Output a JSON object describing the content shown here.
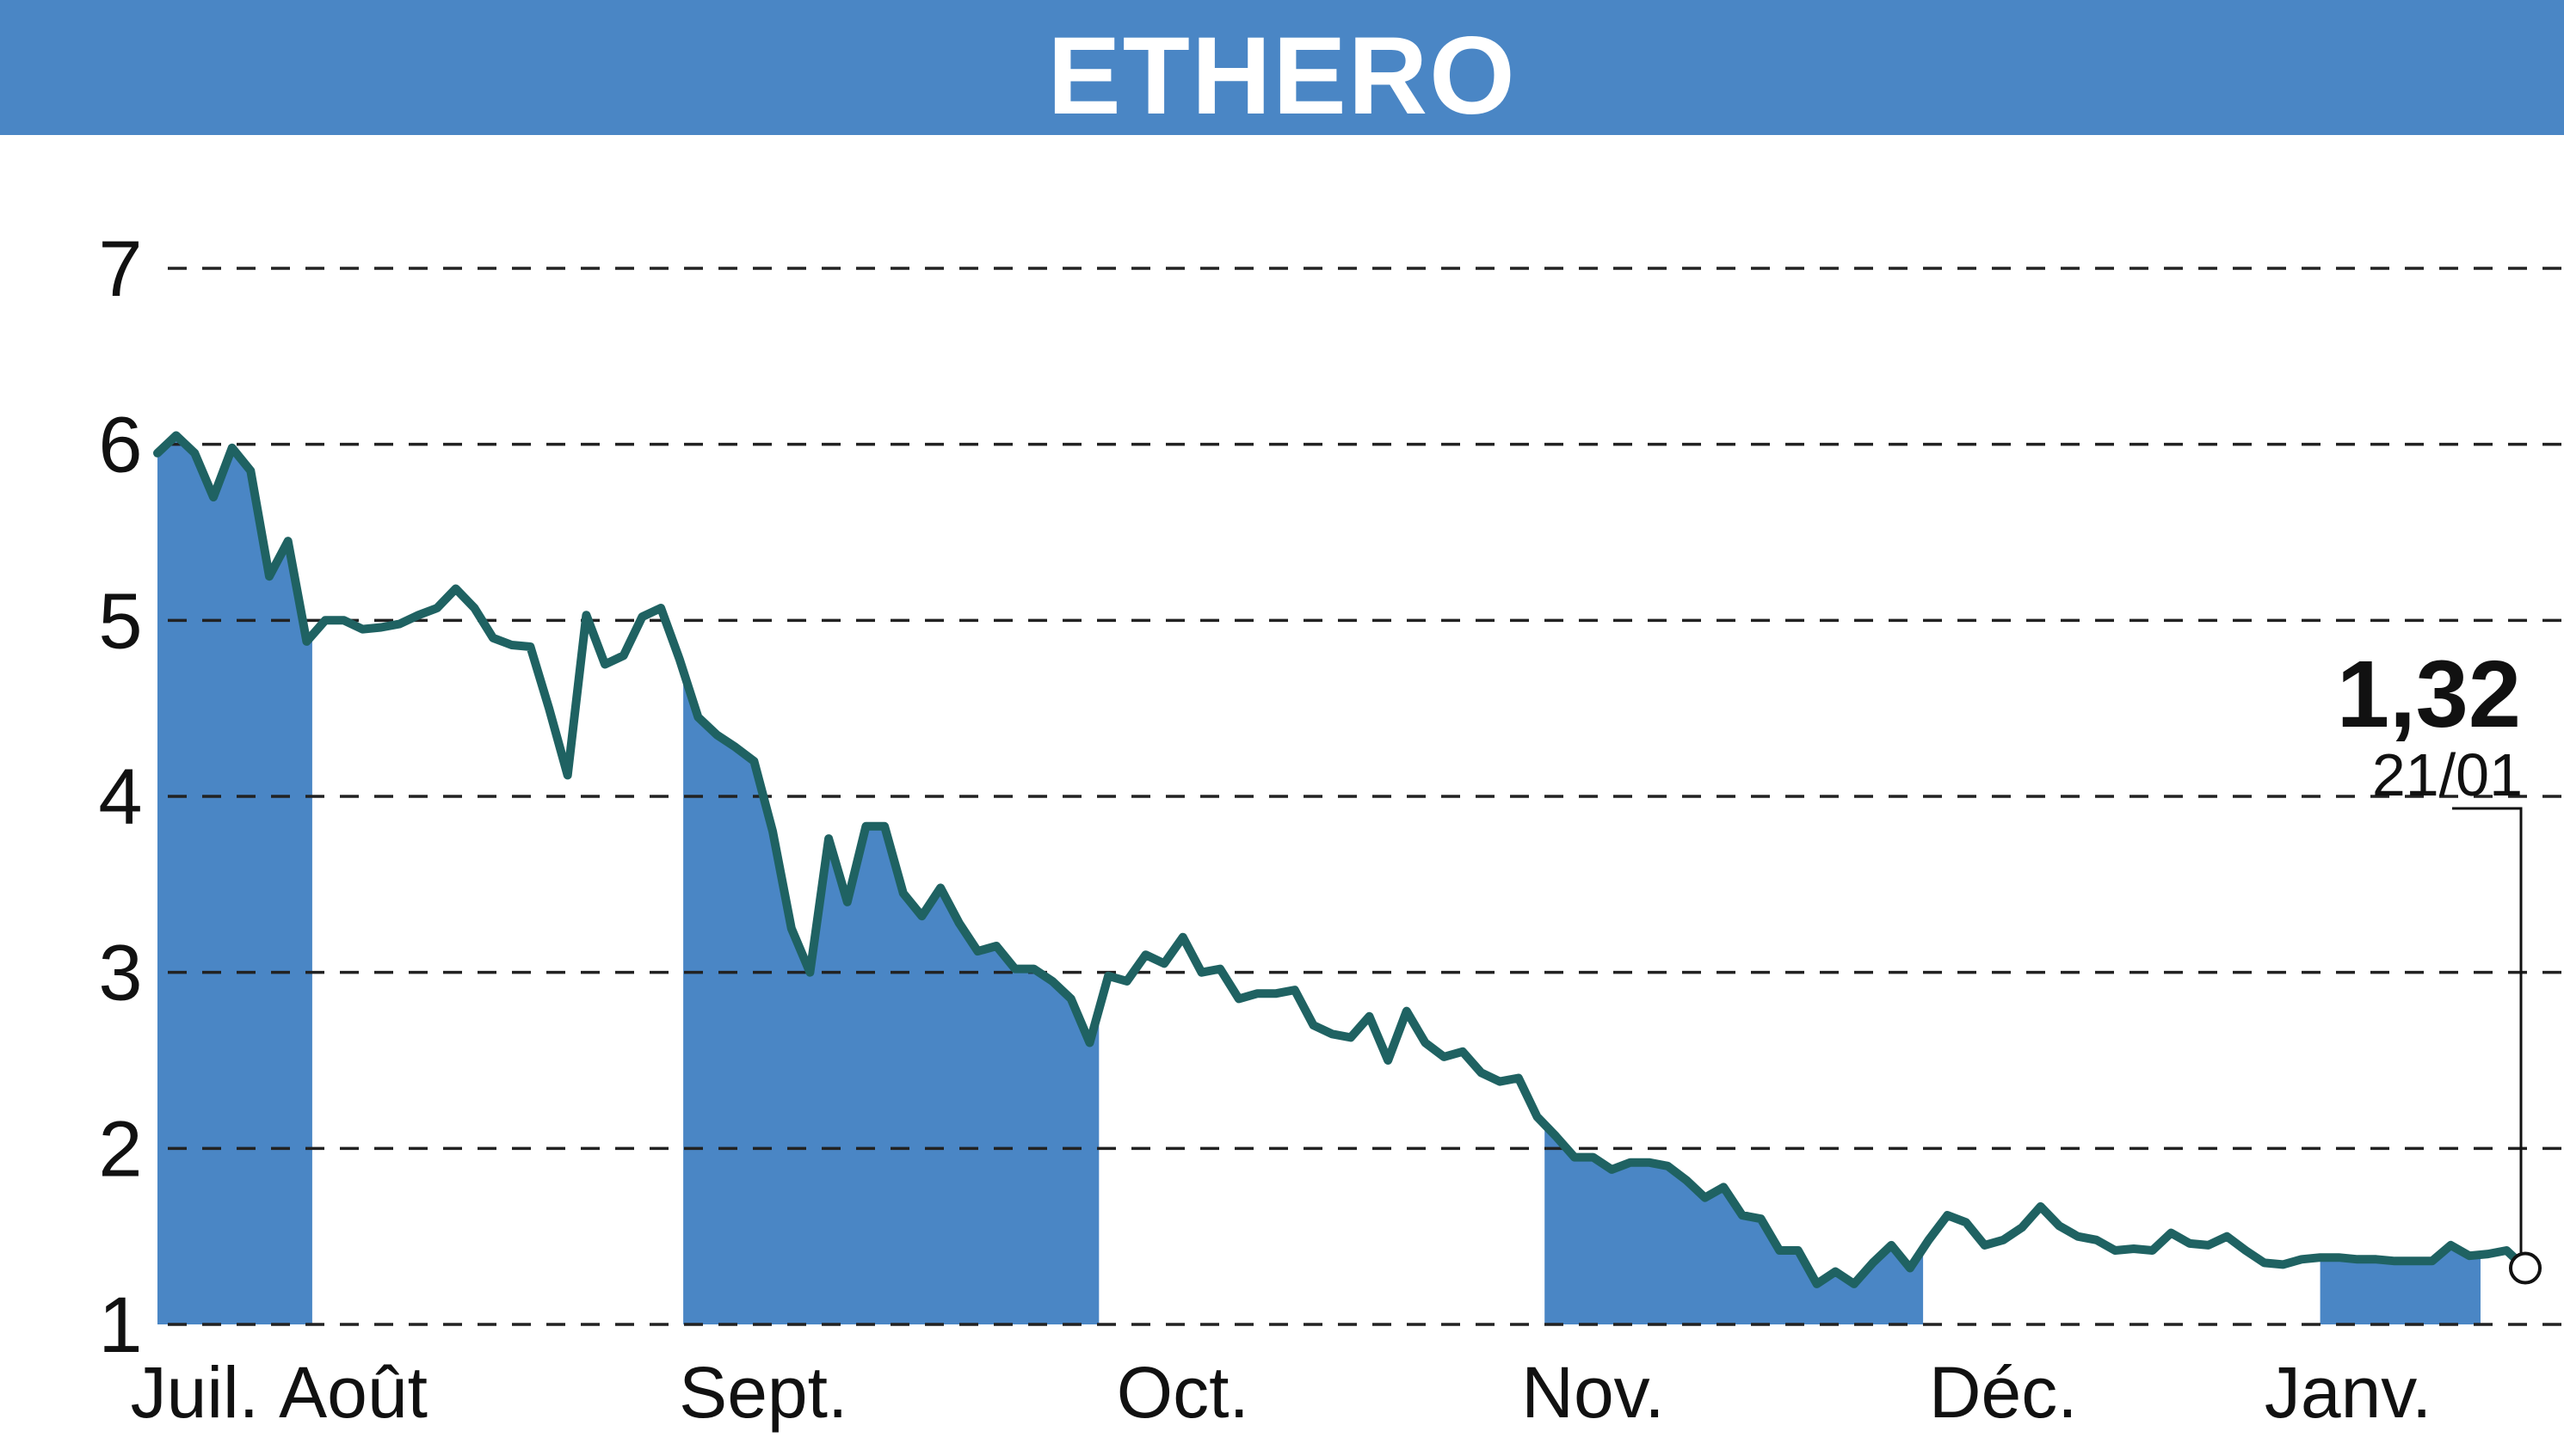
{
  "header": {
    "title": "ETHERO"
  },
  "colors": {
    "accent": "#4a86c5",
    "line": "#1f6262",
    "grid": "#222222",
    "background": "#ffffff"
  },
  "chart_data": {
    "type": "area",
    "title": "ETHERO",
    "xlabel": "",
    "ylabel": "",
    "ylim": [
      1,
      7
    ],
    "yticks": [
      "1",
      "2",
      "3",
      "4",
      "5",
      "6",
      "7"
    ],
    "grid": true,
    "x_ticks": [
      {
        "label": "Juil.",
        "index": 2.0
      },
      {
        "label": "Août",
        "index": 10.5
      },
      {
        "label": "Sept.",
        "index": 32.5
      },
      {
        "label": "Oct.",
        "index": 55.0
      },
      {
        "label": "Nov.",
        "index": 77.0
      },
      {
        "label": "Déc.",
        "index": 99.0
      },
      {
        "label": "Janv.",
        "index": 117.5
      }
    ],
    "shaded_ranges": [
      [
        0,
        8.3
      ],
      [
        28.2,
        50.5
      ],
      [
        74.4,
        94.7
      ],
      [
        116.0,
        124.6
      ]
    ],
    "series": [
      {
        "values": [
          5.95,
          6.05,
          5.95,
          5.7,
          5.98,
          5.85,
          5.25,
          5.45,
          4.88,
          5.0,
          5.0,
          4.95,
          4.96,
          4.98,
          5.03,
          5.07,
          5.18,
          5.07,
          4.9,
          4.86,
          4.85,
          4.5,
          4.12,
          5.03,
          4.75,
          4.8,
          5.02,
          5.07,
          4.78,
          4.45,
          4.35,
          4.28,
          4.2,
          3.8,
          3.25,
          3.0,
          3.76,
          3.4,
          3.83,
          3.83,
          3.45,
          3.32,
          3.48,
          3.28,
          3.12,
          3.15,
          3.02,
          3.02,
          2.95,
          2.85,
          2.6,
          2.98,
          2.95,
          3.1,
          3.05,
          3.2,
          3.0,
          3.02,
          2.85,
          2.88,
          2.88,
          2.9,
          2.7,
          2.65,
          2.63,
          2.75,
          2.5,
          2.78,
          2.6,
          2.52,
          2.55,
          2.43,
          2.38,
          2.4,
          2.18,
          2.07,
          1.95,
          1.95,
          1.88,
          1.92,
          1.92,
          1.9,
          1.82,
          1.72,
          1.78,
          1.62,
          1.6,
          1.42,
          1.42,
          1.23,
          1.3,
          1.23,
          1.35,
          1.45,
          1.32,
          1.48,
          1.62,
          1.58,
          1.45,
          1.48,
          1.55,
          1.67,
          1.56,
          1.5,
          1.48,
          1.42,
          1.43,
          1.42,
          1.52,
          1.46,
          1.45,
          1.5,
          1.42,
          1.35,
          1.34,
          1.37,
          1.38,
          1.38,
          1.37,
          1.37,
          1.36,
          1.36,
          1.36,
          1.45,
          1.39,
          1.4,
          1.42,
          1.32
        ]
      }
    ],
    "last": {
      "value": "1,32",
      "date": "21/01"
    }
  }
}
